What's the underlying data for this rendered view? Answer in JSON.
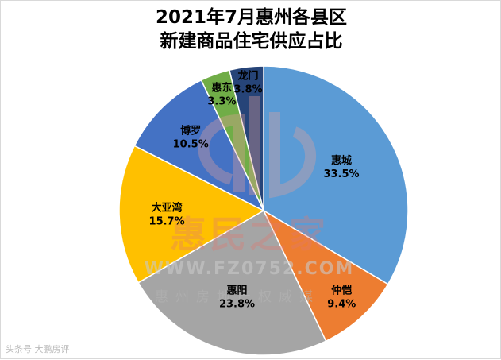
{
  "chart_data": {
    "type": "pie",
    "title_lines": [
      "2021年7月惠州各县区",
      "新建商品住宅供应占比"
    ],
    "unit": "%",
    "slices": [
      {
        "name": "惠城",
        "value": 33.5,
        "label": "33.5%",
        "color": "#5b9bd5"
      },
      {
        "name": "仲恺",
        "value": 9.4,
        "label": "9.4%",
        "color": "#ed7d31"
      },
      {
        "name": "惠阳",
        "value": 23.8,
        "label": "23.8%",
        "color": "#a5a5a5"
      },
      {
        "name": "大亚湾",
        "value": 15.7,
        "label": "15.7%",
        "color": "#ffc000"
      },
      {
        "name": "博罗",
        "value": 10.5,
        "label": "10.5%",
        "color": "#4472c4"
      },
      {
        "name": "惠东",
        "value": 3.3,
        "label": "3.3%",
        "color": "#70ad47"
      },
      {
        "name": "龙门",
        "value": 3.8,
        "label": "3.8%",
        "color": "#264478"
      }
    ],
    "start_angle": "12 o'clock",
    "direction": "clockwise",
    "legend": "none",
    "border_color": "#ffffff"
  },
  "watermark": {
    "brand": "惠民之家",
    "url": "WWW.FZ0752.COM",
    "slogan": "惠州房地产权威媒"
  },
  "source_text": "头条号 大鹏房评"
}
